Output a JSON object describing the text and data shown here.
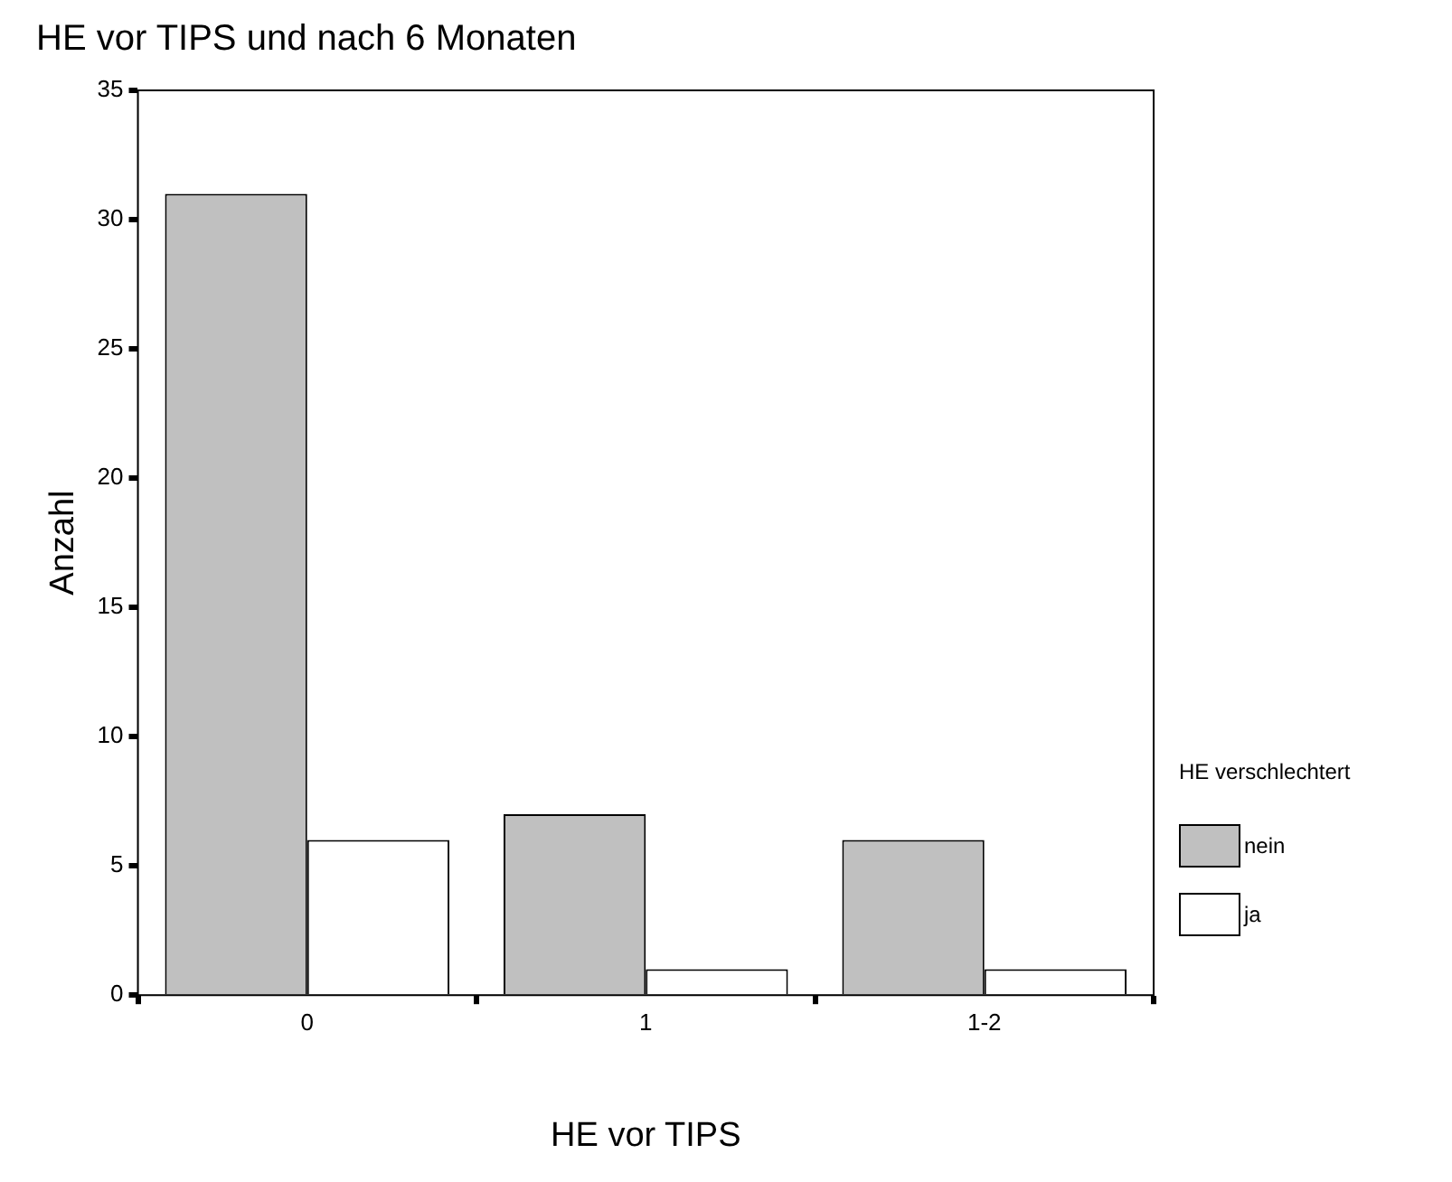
{
  "chart_data": {
    "type": "bar",
    "title": "HE vor TIPS und nach 6 Monaten",
    "xlabel": "HE vor TIPS",
    "ylabel": "Anzahl",
    "legend_title": "HE verschlechtert",
    "categories": [
      "0",
      "1",
      "1-2"
    ],
    "series": [
      {
        "name": "nein",
        "color": "#c0c0c0",
        "values": [
          31,
          7,
          6
        ]
      },
      {
        "name": "ja",
        "color": "#ffffff",
        "values": [
          6,
          1,
          1
        ]
      }
    ],
    "ylim": [
      0,
      35
    ],
    "yticks": [
      0,
      5,
      10,
      15,
      20,
      25,
      30,
      35
    ],
    "grid": false,
    "legend": "right"
  }
}
